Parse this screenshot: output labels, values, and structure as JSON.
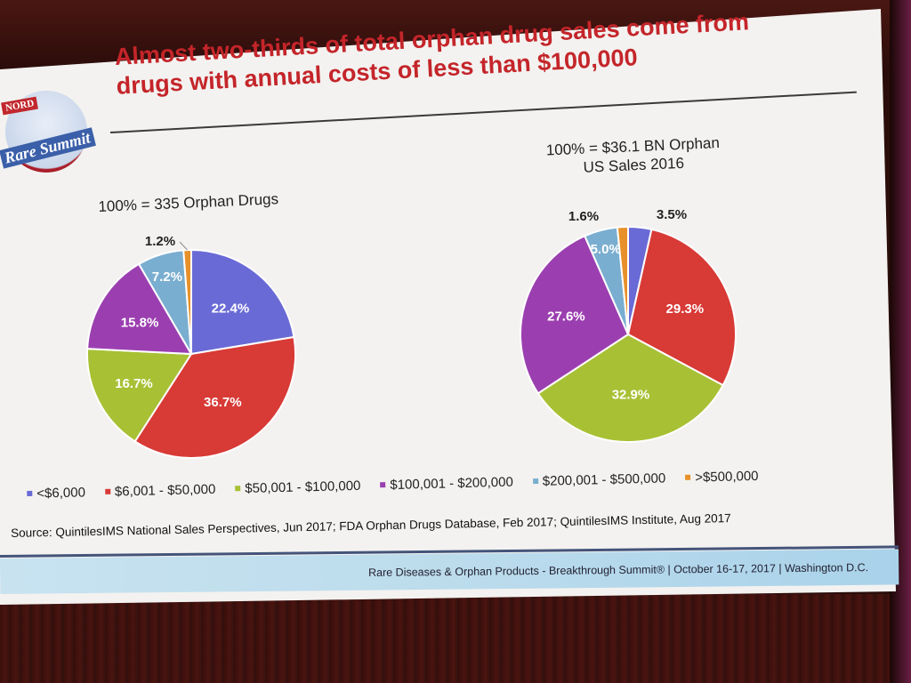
{
  "slide": {
    "title_line1": "Almost two-thirds of total orphan drug sales come from",
    "title_line2": "drugs with annual costs of less than $100,000",
    "logo": {
      "badge": "NORD",
      "name": "Rare Summit"
    },
    "source": "Source: QuintilesIMS National Sales Perspectives, Jun 2017; FDA Orphan Drugs Database, Feb 2017; QuintilesIMS Institute, Aug 2017",
    "footer": "Rare Diseases & Orphan Products - Breakthrough Summit® | October 16-17, 2017 | Washington D.C."
  },
  "colors": {
    "lt6000": "#6a6ad6",
    "6001_50000": "#d83a36",
    "50001_100000": "#a8c034",
    "100001_200000": "#9b3fb0",
    "200001_500000": "#7aaed0",
    "gt500000": "#e8902a",
    "title": "#c4252a"
  },
  "chart_data": [
    {
      "type": "pie",
      "title": "100% = 335 Orphan Drugs",
      "categories": [
        "<$6,000",
        "$6,001 - $50,000",
        "$50,001 - $100,000",
        "$100,001 - $200,000",
        "$200,001 - $500,000",
        ">$500,000"
      ],
      "values": [
        22.4,
        36.7,
        16.7,
        15.8,
        7.2,
        1.2
      ],
      "labels": [
        "22.4%",
        "36.7%",
        "16.7%",
        "15.8%",
        "7.2%",
        "1.2%"
      ],
      "legend_position": "bottom"
    },
    {
      "type": "pie",
      "title": "100% = $36.1 BN Orphan US Sales 2016",
      "title_line1": "100% = $36.1 BN Orphan",
      "title_line2": "US Sales 2016",
      "categories": [
        "<$6,000",
        "$6,001 - $50,000",
        "$50,001 - $100,000",
        "$100,001 - $200,000",
        "$200,001 - $500,000",
        ">$500,000"
      ],
      "values": [
        3.5,
        29.3,
        32.9,
        27.6,
        5.0,
        1.6
      ],
      "labels": [
        "3.5%",
        "29.3%",
        "32.9%",
        "27.6%",
        "5.0%",
        "1.6%"
      ],
      "legend_position": "bottom"
    }
  ]
}
